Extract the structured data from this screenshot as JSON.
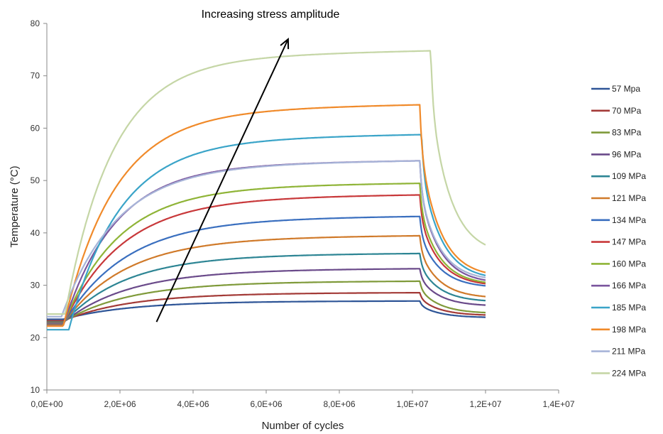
{
  "chart_data": {
    "type": "line",
    "title": "",
    "xlabel": "Number of cycles",
    "ylabel": "Temperature (°C)",
    "xlim": [
      0,
      14000000
    ],
    "ylim": [
      10,
      80
    ],
    "x_ticks": [
      0,
      2000000,
      4000000,
      6000000,
      8000000,
      10000000,
      12000000,
      14000000
    ],
    "x_tick_labels": [
      "0,0E+00",
      "2,0E+06",
      "4,0E+06",
      "6,0E+06",
      "8,0E+06",
      "1,0E+07",
      "1,2E+07",
      "1,4E+07"
    ],
    "y_ticks": [
      10,
      20,
      30,
      40,
      50,
      60,
      70,
      80
    ],
    "y_tick_labels": [
      "10",
      "20",
      "30",
      "40",
      "50",
      "60",
      "70",
      "80"
    ],
    "grid": false,
    "legend_position": "right",
    "annotation": {
      "text": "Increasing stress amplitude",
      "arrow_from": [
        3000000,
        23
      ],
      "arrow_to": [
        6600000,
        77
      ]
    },
    "series": [
      {
        "name": "57 Mpa",
        "color": "#2e5597",
        "start": 23.5,
        "plateau": 27.0,
        "end": 23.8,
        "tau": 1800000,
        "t_on": 450000,
        "t_off": 10200000
      },
      {
        "name": "70 MPa",
        "color": "#a33a37",
        "start": 23.2,
        "plateau": 28.6,
        "end": 24.2,
        "tau": 1800000,
        "t_on": 450000,
        "t_off": 10200000
      },
      {
        "name": "83 MPa",
        "color": "#7f9a3a",
        "start": 23.0,
        "plateau": 30.8,
        "end": 24.6,
        "tau": 1800000,
        "t_on": 450000,
        "t_off": 10200000
      },
      {
        "name": "96 MPa",
        "color": "#6a4a8a",
        "start": 22.9,
        "plateau": 33.2,
        "end": 26.0,
        "tau": 1800000,
        "t_on": 450000,
        "t_off": 10200000
      },
      {
        "name": "109 MPa",
        "color": "#2d8594",
        "start": 22.8,
        "plateau": 36.1,
        "end": 26.8,
        "tau": 1700000,
        "t_on": 450000,
        "t_off": 10200000
      },
      {
        "name": "121 MPa",
        "color": "#d07a2a",
        "start": 22.7,
        "plateau": 39.5,
        "end": 27.5,
        "tau": 1700000,
        "t_on": 450000,
        "t_off": 10200000
      },
      {
        "name": "134 MPa",
        "color": "#3a6fbf",
        "start": 22.6,
        "plateau": 43.2,
        "end": 29.5,
        "tau": 1700000,
        "t_on": 450000,
        "t_off": 10200000
      },
      {
        "name": "147 MPa",
        "color": "#c8383a",
        "start": 22.5,
        "plateau": 47.3,
        "end": 29.8,
        "tau": 1600000,
        "t_on": 450000,
        "t_off": 10200000
      },
      {
        "name": "160 MPa",
        "color": "#8fb437",
        "start": 22.4,
        "plateau": 49.5,
        "end": 30.0,
        "tau": 1500000,
        "t_on": 450000,
        "t_off": 10200000
      },
      {
        "name": "166 MPa",
        "color": "#7b559e",
        "start": 22.3,
        "plateau": 53.8,
        "end": 30.3,
        "tau": 1400000,
        "t_on": 450000,
        "t_off": 10200000
      },
      {
        "name": "185 MPa",
        "color": "#3aa4c8",
        "start": 21.5,
        "plateau": 58.8,
        "end": 31.0,
        "tau": 1400000,
        "t_on": 600000,
        "t_off": 10250000
      },
      {
        "name": "198 MPa",
        "color": "#f08a2a",
        "start": 22.2,
        "plateau": 64.5,
        "end": 31.5,
        "tau": 1400000,
        "t_on": 450000,
        "t_off": 10200000
      },
      {
        "name": "211 MPa",
        "color": "#a7b4d8",
        "start": 24.0,
        "plateau": 53.8,
        "end": 30.8,
        "tau": 1500000,
        "t_on": 400000,
        "t_off": 10200000
      },
      {
        "name": "224 MPa",
        "color": "#c5d6a6",
        "start": 24.5,
        "plateau": 74.8,
        "end": 35.8,
        "tau": 1300000,
        "t_on": 500000,
        "t_off": 10500000
      }
    ]
  }
}
